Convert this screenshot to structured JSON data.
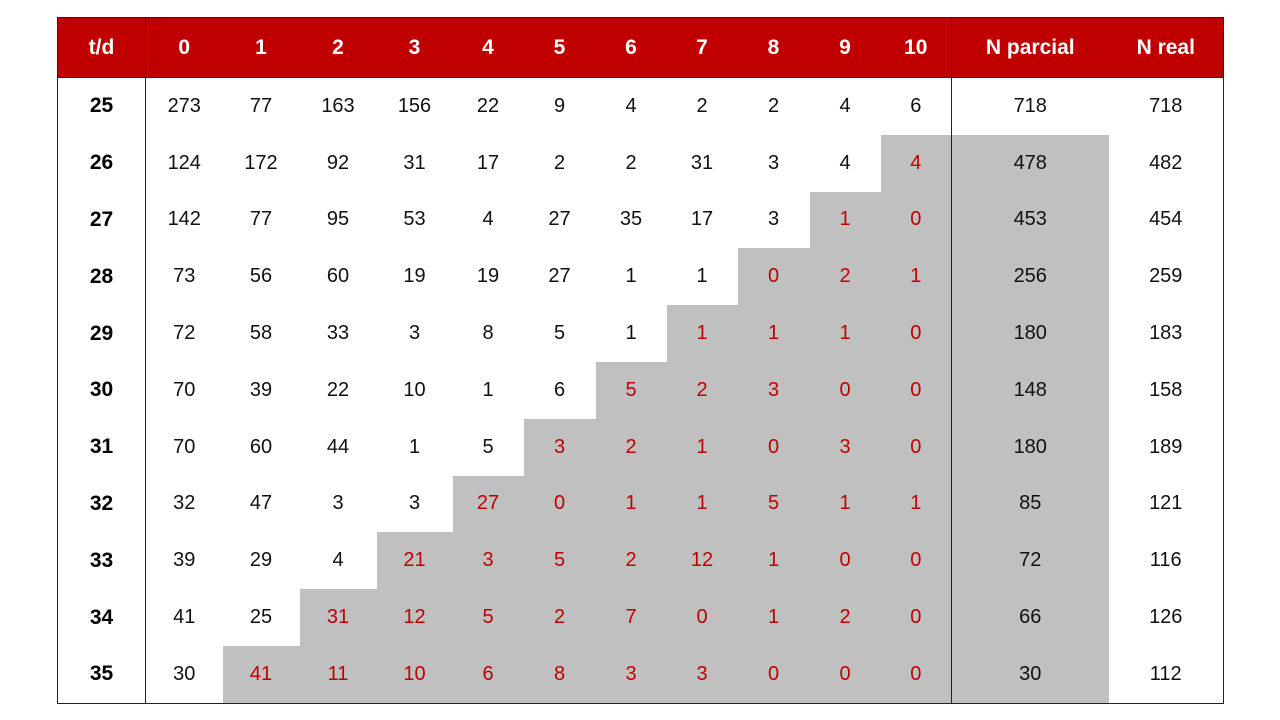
{
  "headers": [
    "t/d",
    "0",
    "1",
    "2",
    "3",
    "4",
    "5",
    "6",
    "7",
    "8",
    "9",
    "10",
    "N parcial",
    "N real"
  ],
  "rows": [
    {
      "t": "25",
      "values": [
        "273",
        "77",
        "163",
        "156",
        "22",
        "9",
        "4",
        "2",
        "2",
        "4",
        "6"
      ],
      "n_parcial": "718",
      "n_real": "718"
    },
    {
      "t": "26",
      "values": [
        "124",
        "172",
        "92",
        "31",
        "17",
        "2",
        "2",
        "31",
        "3",
        "4",
        "4"
      ],
      "n_parcial": "478",
      "n_real": "482"
    },
    {
      "t": "27",
      "values": [
        "142",
        "77",
        "95",
        "53",
        "4",
        "27",
        "35",
        "17",
        "3",
        "1",
        "0"
      ],
      "n_parcial": "453",
      "n_real": "454"
    },
    {
      "t": "28",
      "values": [
        "73",
        "56",
        "60",
        "19",
        "19",
        "27",
        "1",
        "1",
        "0",
        "2",
        "1"
      ],
      "n_parcial": "256",
      "n_real": "259"
    },
    {
      "t": "29",
      "values": [
        "72",
        "58",
        "33",
        "3",
        "8",
        "5",
        "1",
        "1",
        "1",
        "1",
        "0"
      ],
      "n_parcial": "180",
      "n_real": "183"
    },
    {
      "t": "30",
      "values": [
        "70",
        "39",
        "22",
        "10",
        "1",
        "6",
        "5",
        "2",
        "3",
        "0",
        "0"
      ],
      "n_parcial": "148",
      "n_real": "158"
    },
    {
      "t": "31",
      "values": [
        "70",
        "60",
        "44",
        "1",
        "5",
        "3",
        "2",
        "1",
        "0",
        "3",
        "0"
      ],
      "n_parcial": "180",
      "n_real": "189"
    },
    {
      "t": "32",
      "values": [
        "32",
        "47",
        "3",
        "3",
        "27",
        "0",
        "1",
        "1",
        "5",
        "1",
        "1"
      ],
      "n_parcial": "85",
      "n_real": "121"
    },
    {
      "t": "33",
      "values": [
        "39",
        "29",
        "4",
        "21",
        "3",
        "5",
        "2",
        "12",
        "1",
        "0",
        "0"
      ],
      "n_parcial": "72",
      "n_real": "116"
    },
    {
      "t": "34",
      "values": [
        "41",
        "25",
        "31",
        "12",
        "5",
        "2",
        "7",
        "0",
        "1",
        "2",
        "0"
      ],
      "n_parcial": "66",
      "n_real": "126"
    },
    {
      "t": "35",
      "values": [
        "30",
        "41",
        "11",
        "10",
        "6",
        "8",
        "3",
        "3",
        "0",
        "0",
        "0"
      ],
      "n_parcial": "30",
      "n_real": "112"
    }
  ],
  "colors": {
    "header_bg": "#c00000",
    "header_text": "#ffffff",
    "shade": "#c0c0c0",
    "highlight_text": "#c00000"
  }
}
